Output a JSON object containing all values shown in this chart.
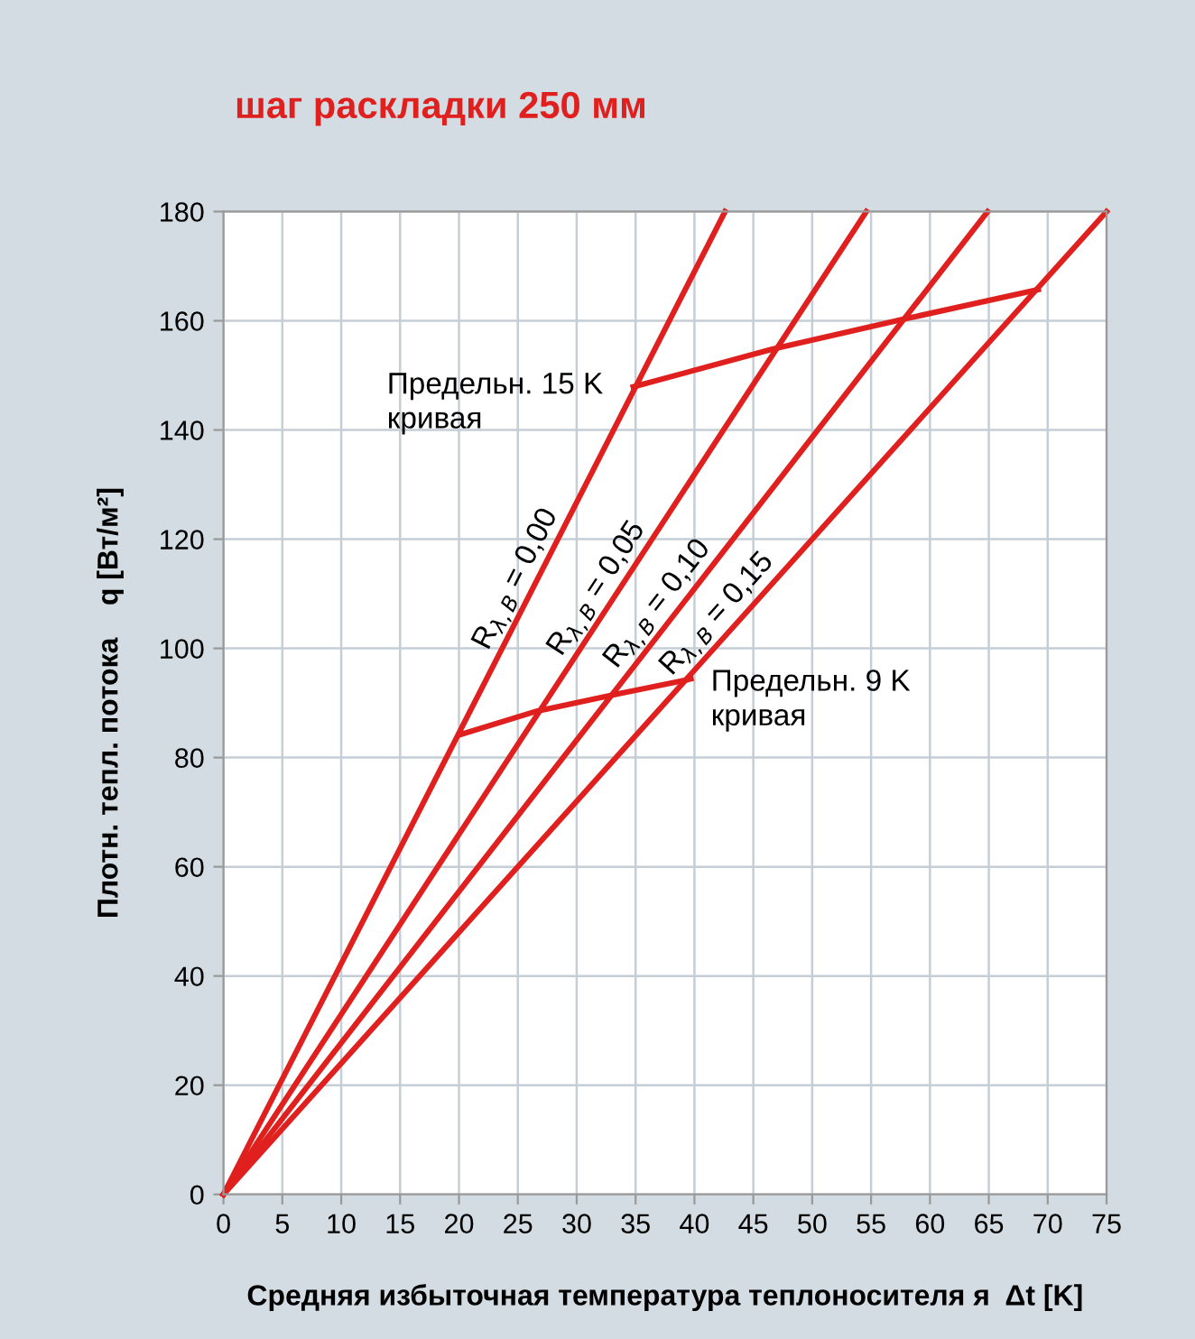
{
  "chart_data": {
    "type": "line",
    "title": "шаг раскладки 250 мм",
    "xlabel": "Средняя избыточная температура теплоносителя я  Δt [K]",
    "ylabel": "Плотн. тепл. потока    q [Вт/м²]",
    "series": [
      {
        "color": "#e0201e",
        "x": [
          0,
          42.6
        ],
        "values": [
          0,
          180
        ]
      },
      {
        "color": "#e0201e",
        "x": [
          0,
          54.6
        ],
        "values": [
          0,
          180
        ]
      },
      {
        "color": "#e0201e",
        "x": [
          0,
          64.9
        ],
        "values": [
          0,
          180
        ]
      },
      {
        "color": "#e0201e",
        "x": [
          0,
          75
        ],
        "values": [
          0,
          180
        ]
      },
      {
        "color": "#e0201e",
        "x": [
          34.8,
          46.6,
          58,
          69.2
        ],
        "values": [
          147.9,
          154.8,
          160.4,
          165.7
        ]
      },
      {
        "color": "#e0201e",
        "x": [
          20.1,
          26.6,
          33.6,
          39.7
        ],
        "values": [
          84.2,
          88.5,
          91.7,
          94.4
        ]
      }
    ],
    "annotations": [
      {
        "text": "R$_{λ,B}$ = 0,00",
        "x": 26,
        "y": 110
      },
      {
        "text": "R$_{λ,B}$ = 0,05",
        "x": 32.8,
        "y": 108
      },
      {
        "text": "R$_{λ,B}$ = 0,10",
        "x": 37.9,
        "y": 105
      },
      {
        "text": "R$_{λ,B}$ = 0,15",
        "x": 42.9,
        "y": 103
      },
      {
        "text": "Предельн. 15 K\nкривая",
        "x": 34.8,
        "y": 147.9
      },
      {
        "text": "Предельн. 9 K\nкривая",
        "x": 39.7,
        "y": 94.4
      }
    ],
    "xlim": [
      0,
      75
    ],
    "xticks": [
      0,
      5,
      10,
      15,
      20,
      25,
      30,
      35,
      40,
      45,
      50,
      55,
      60,
      65,
      70,
      75
    ],
    "ylim": [
      0,
      180
    ],
    "yticks": [
      0,
      20,
      40,
      60,
      80,
      100,
      120,
      140,
      160,
      180
    ],
    "grid": true,
    "marker": "none",
    "line_style": "solid"
  }
}
